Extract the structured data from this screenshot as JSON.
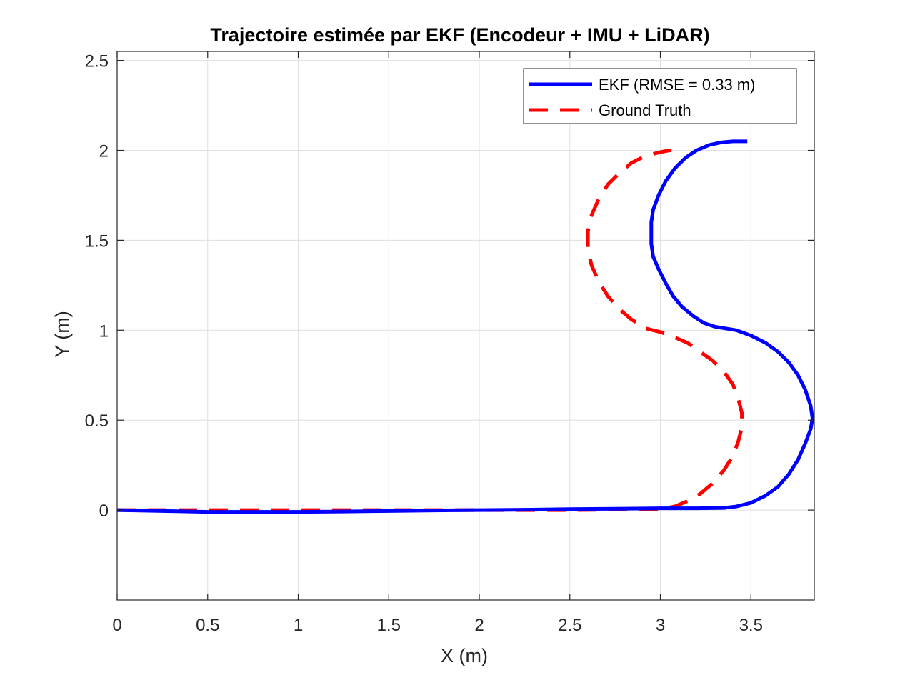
{
  "chart_data": {
    "type": "line",
    "title": "Trajectoire estimée par EKF (Encodeur + IMU + LiDAR)",
    "xlabel": "X (m)",
    "ylabel": "Y (m)",
    "xlim": [
      0,
      3.85
    ],
    "ylim": [
      -0.5,
      2.55
    ],
    "x_ticks": [
      "0",
      "0.5",
      "1",
      "1.5",
      "2",
      "2.5",
      "3",
      "3.5"
    ],
    "x_tick_values": [
      0,
      0.5,
      1,
      1.5,
      2,
      2.5,
      3,
      3.5
    ],
    "y_ticks": [
      "0",
      "0.5",
      "1",
      "1.5",
      "2",
      "2.5"
    ],
    "y_tick_values": [
      0,
      0.5,
      1,
      1.5,
      2,
      2.5
    ],
    "grid": true,
    "legend_position": "top-right",
    "series": [
      {
        "name": "EKF (RMSE = 0.33 m)",
        "color": "#0000ff",
        "style": "solid",
        "x": [
          0,
          0.25,
          0.5,
          0.75,
          1.0,
          1.25,
          1.5,
          1.75,
          2.0,
          2.25,
          2.5,
          2.75,
          3.0,
          3.2,
          3.35,
          3.42,
          3.5,
          3.58,
          3.65,
          3.71,
          3.76,
          3.8,
          3.83,
          3.84,
          3.83,
          3.8,
          3.76,
          3.71,
          3.65,
          3.58,
          3.5,
          3.42,
          3.36,
          3.3,
          3.24,
          3.18,
          3.12,
          3.07,
          3.03,
          2.99,
          2.96,
          2.95,
          2.95,
          2.96,
          2.99,
          3.03,
          3.08,
          3.14,
          3.2,
          3.27,
          3.34,
          3.4,
          3.44,
          3.48
        ],
        "y": [
          0,
          -0.005,
          -0.01,
          -0.01,
          -0.01,
          -0.008,
          -0.005,
          -0.002,
          0.0,
          0.002,
          0.005,
          0.007,
          0.01,
          0.01,
          0.012,
          0.02,
          0.04,
          0.08,
          0.13,
          0.2,
          0.28,
          0.37,
          0.45,
          0.51,
          0.58,
          0.67,
          0.75,
          0.82,
          0.88,
          0.93,
          0.97,
          1.0,
          1.01,
          1.02,
          1.04,
          1.08,
          1.13,
          1.19,
          1.26,
          1.34,
          1.41,
          1.48,
          1.6,
          1.67,
          1.75,
          1.83,
          1.9,
          1.96,
          2.0,
          2.03,
          2.045,
          2.05,
          2.05,
          2.05
        ]
      },
      {
        "name": "Ground Truth",
        "color": "#ff0000",
        "style": "dashed",
        "x": [
          0,
          0.5,
          1.0,
          1.5,
          2.0,
          2.5,
          3.0,
          3.08,
          3.15,
          3.22,
          3.29,
          3.35,
          3.4,
          3.43,
          3.45,
          3.45,
          3.43,
          3.4,
          3.35,
          3.29,
          3.22,
          3.15,
          3.08,
          3.0,
          2.92,
          2.84,
          2.77,
          2.71,
          2.66,
          2.62,
          2.6,
          2.6,
          2.62,
          2.66,
          2.71,
          2.77,
          2.84,
          2.92,
          3.0,
          3.05,
          3.1
        ],
        "y": [
          0,
          0,
          0,
          0,
          0,
          0,
          0.005,
          0.02,
          0.05,
          0.09,
          0.15,
          0.22,
          0.3,
          0.38,
          0.46,
          0.54,
          0.62,
          0.7,
          0.77,
          0.83,
          0.88,
          0.93,
          0.96,
          0.99,
          1.01,
          1.06,
          1.12,
          1.19,
          1.27,
          1.36,
          1.45,
          1.55,
          1.64,
          1.73,
          1.81,
          1.87,
          1.93,
          1.97,
          1.99,
          2.0,
          2.0
        ]
      }
    ]
  }
}
